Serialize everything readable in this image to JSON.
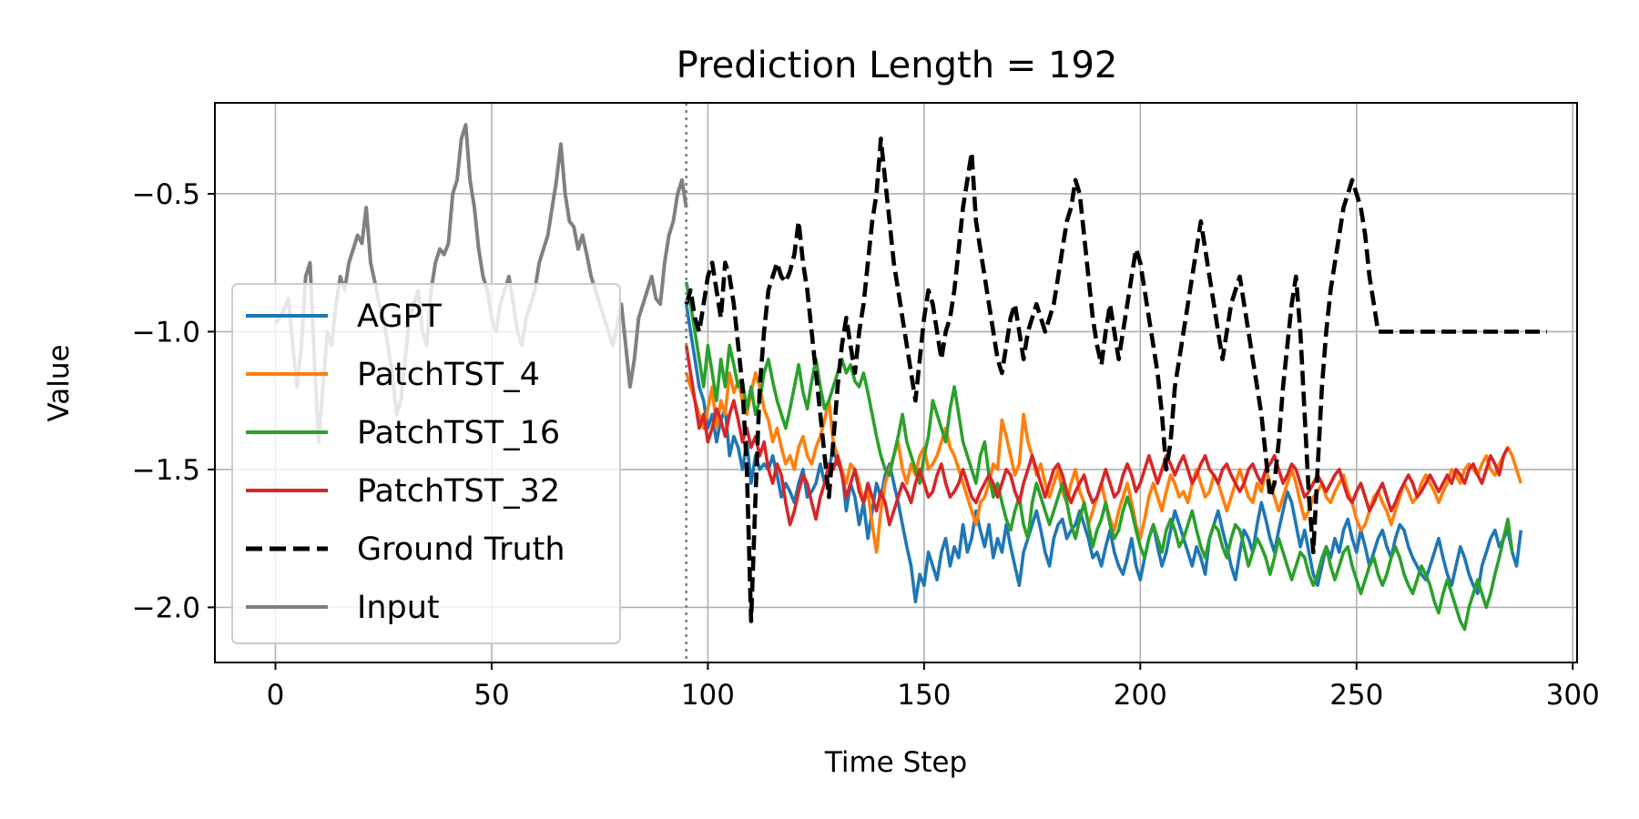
{
  "chart_data": {
    "type": "line",
    "title": "Prediction Length = 192",
    "xlabel": "Time Step",
    "ylabel": "Value",
    "xlim": [
      -14,
      301
    ],
    "ylim": [
      -2.2,
      -0.17
    ],
    "xticks": [
      0,
      50,
      100,
      150,
      200,
      250,
      300
    ],
    "yticks": [
      -2.0,
      -1.5,
      -1.0,
      -0.5
    ],
    "ytick_labels": [
      "−2.0",
      "−1.5",
      "−1.0",
      "−0.5"
    ],
    "grid": true,
    "legend_position": "center-left",
    "input_end_marker": 95,
    "input": {
      "x0": 0,
      "values": [
        -0.97,
        -0.95,
        -0.92,
        -0.88,
        -1.05,
        -1.2,
        -1.05,
        -0.8,
        -0.75,
        -1.1,
        -1.4,
        -1.2,
        -1.0,
        -1.05,
        -0.9,
        -0.8,
        -0.85,
        -0.75,
        -0.7,
        -0.65,
        -0.68,
        -0.55,
        -0.75,
        -0.82,
        -0.9,
        -0.95,
        -1.05,
        -1.15,
        -1.3,
        -1.25,
        -1.1,
        -0.95,
        -0.9,
        -0.85,
        -1.0,
        -1.05,
        -0.85,
        -0.75,
        -0.7,
        -0.72,
        -0.68,
        -0.5,
        -0.45,
        -0.3,
        -0.25,
        -0.45,
        -0.55,
        -0.7,
        -0.8,
        -0.85,
        -0.95,
        -1.0,
        -0.9,
        -0.85,
        -0.8,
        -0.9,
        -1.0,
        -1.05,
        -0.95,
        -0.9,
        -0.85,
        -0.75,
        -0.7,
        -0.65,
        -0.55,
        -0.45,
        -0.32,
        -0.5,
        -0.6,
        -0.62,
        -0.7,
        -0.65,
        -0.72,
        -0.8,
        -0.85,
        -0.9,
        -0.95,
        -1.0,
        -1.05,
        -0.98,
        -0.9,
        -1.05,
        -1.2,
        -1.1,
        -0.95,
        -0.9,
        -0.85,
        -0.8,
        -0.88,
        -0.9,
        -0.75,
        -0.65,
        -0.6,
        -0.5,
        -0.45,
        -0.55
      ],
      "name": "Input",
      "color": "#808080"
    },
    "series": [
      {
        "name": "AGPT",
        "color": "#1f77b4",
        "values": [
          -0.9,
          -1.0,
          -1.1,
          -1.2,
          -1.25,
          -1.35,
          -1.3,
          -1.4,
          -1.32,
          -1.28,
          -1.45,
          -1.38,
          -1.42,
          -1.5,
          -1.4,
          -1.55,
          -1.45,
          -1.5,
          -1.48,
          -1.5,
          -1.45,
          -1.52,
          -1.6,
          -1.55,
          -1.58,
          -1.62,
          -1.55,
          -1.5,
          -1.6,
          -1.58,
          -1.55,
          -1.48,
          -1.55,
          -1.5,
          -1.42,
          -1.48,
          -1.5,
          -1.65,
          -1.55,
          -1.6,
          -1.7,
          -1.62,
          -1.75,
          -1.65,
          -1.55,
          -1.6,
          -1.52,
          -1.48,
          -1.55,
          -1.62,
          -1.7,
          -1.78,
          -1.85,
          -1.98,
          -1.88,
          -1.92,
          -1.8,
          -1.85,
          -1.9,
          -1.8,
          -1.75,
          -1.85,
          -1.78,
          -1.82,
          -1.7,
          -1.8,
          -1.75,
          -1.65,
          -1.72,
          -1.78,
          -1.7,
          -1.82,
          -1.75,
          -1.8,
          -1.7,
          -1.78,
          -1.85,
          -1.92,
          -1.8,
          -1.75,
          -1.7,
          -1.65,
          -1.72,
          -1.8,
          -1.85,
          -1.75,
          -1.7,
          -1.68,
          -1.75,
          -1.72,
          -1.7,
          -1.65,
          -1.7,
          -1.75,
          -1.82,
          -1.8,
          -1.85,
          -1.78,
          -1.72,
          -1.8,
          -1.85,
          -1.88,
          -1.82,
          -1.75,
          -1.85,
          -1.9,
          -1.82,
          -1.75,
          -1.7,
          -1.78,
          -1.85,
          -1.8,
          -1.72,
          -1.65,
          -1.7,
          -1.75,
          -1.8,
          -1.85,
          -1.78,
          -1.82,
          -1.88,
          -1.75,
          -1.7,
          -1.65,
          -1.72,
          -1.78,
          -1.85,
          -1.9,
          -1.8,
          -1.72,
          -1.75,
          -1.8,
          -1.7,
          -1.62,
          -1.68,
          -1.75,
          -1.8,
          -1.72,
          -1.65,
          -1.58,
          -1.62,
          -1.7,
          -1.78,
          -1.72,
          -1.8,
          -1.88,
          -1.92,
          -1.85,
          -1.78,
          -1.82,
          -1.75,
          -1.8,
          -1.72,
          -1.68,
          -1.75,
          -1.8,
          -1.72,
          -1.78,
          -1.85,
          -1.8,
          -1.75,
          -1.72,
          -1.78,
          -1.82,
          -1.75,
          -1.7,
          -1.72,
          -1.78,
          -1.82,
          -1.85,
          -1.88,
          -1.9,
          -1.85,
          -1.8,
          -1.75,
          -1.82,
          -1.88,
          -1.92,
          -1.85,
          -1.78,
          -1.82,
          -1.88,
          -1.92,
          -1.95,
          -1.85,
          -1.8,
          -1.75,
          -1.72,
          -1.78,
          -1.75,
          -1.72,
          -1.8,
          -1.85,
          -1.72
        ]
      },
      {
        "name": "PatchTST_4",
        "color": "#ff7f0e",
        "values": [
          -1.15,
          -1.2,
          -1.25,
          -1.3,
          -1.35,
          -1.28,
          -1.2,
          -1.35,
          -1.25,
          -1.3,
          -1.15,
          -1.22,
          -1.18,
          -1.25,
          -1.3,
          -1.22,
          -1.15,
          -1.2,
          -1.28,
          -1.32,
          -1.4,
          -1.35,
          -1.42,
          -1.48,
          -1.45,
          -1.5,
          -1.42,
          -1.38,
          -1.45,
          -1.48,
          -1.42,
          -1.38,
          -1.32,
          -1.25,
          -1.4,
          -1.45,
          -1.5,
          -1.55,
          -1.48,
          -1.5,
          -1.55,
          -1.62,
          -1.58,
          -1.7,
          -1.8,
          -1.65,
          -1.55,
          -1.5,
          -1.45,
          -1.4,
          -1.5,
          -1.55,
          -1.48,
          -1.52,
          -1.45,
          -1.42,
          -1.5,
          -1.48,
          -1.45,
          -1.4,
          -1.35,
          -1.42,
          -1.45,
          -1.5,
          -1.55,
          -1.6,
          -1.65,
          -1.7,
          -1.62,
          -1.6,
          -1.55,
          -1.48,
          -1.5,
          -1.32,
          -1.38,
          -1.45,
          -1.52,
          -1.48,
          -1.3,
          -1.4,
          -1.45,
          -1.52,
          -1.48,
          -1.55,
          -1.6,
          -1.55,
          -1.5,
          -1.58,
          -1.62,
          -1.55,
          -1.5,
          -1.58,
          -1.62,
          -1.7,
          -1.65,
          -1.6,
          -1.55,
          -1.62,
          -1.68,
          -1.72,
          -1.65,
          -1.6,
          -1.55,
          -1.62,
          -1.7,
          -1.75,
          -1.68,
          -1.6,
          -1.55,
          -1.6,
          -1.65,
          -1.58,
          -1.52,
          -1.55,
          -1.6,
          -1.58,
          -1.62,
          -1.55,
          -1.5,
          -1.55,
          -1.6,
          -1.58,
          -1.52,
          -1.55,
          -1.6,
          -1.65,
          -1.6,
          -1.55,
          -1.5,
          -1.55,
          -1.6,
          -1.62,
          -1.55,
          -1.58,
          -1.5,
          -1.55,
          -1.6,
          -1.65,
          -1.6,
          -1.55,
          -1.5,
          -1.55,
          -1.62,
          -1.68,
          -1.65,
          -1.6,
          -1.58,
          -1.55,
          -1.6,
          -1.62,
          -1.58,
          -1.55,
          -1.52,
          -1.58,
          -1.62,
          -1.68,
          -1.72,
          -1.7,
          -1.65,
          -1.6,
          -1.58,
          -1.62,
          -1.65,
          -1.7,
          -1.65,
          -1.6,
          -1.55,
          -1.58,
          -1.62,
          -1.6,
          -1.55,
          -1.52,
          -1.55,
          -1.58,
          -1.62,
          -1.58,
          -1.55,
          -1.5,
          -1.52,
          -1.55,
          -1.5,
          -1.48,
          -1.5,
          -1.52,
          -1.48,
          -1.45,
          -1.5,
          -1.52,
          -1.48,
          -1.45,
          -1.42,
          -1.45,
          -1.5,
          -1.55
        ]
      },
      {
        "name": "PatchTST_16",
        "color": "#2ca02c",
        "values": [
          -0.82,
          -0.9,
          -1.0,
          -1.1,
          -1.2,
          -1.05,
          -1.15,
          -1.25,
          -1.1,
          -1.2,
          -1.05,
          -1.12,
          -1.2,
          -1.18,
          -1.28,
          -1.2,
          -1.3,
          -1.25,
          -1.15,
          -1.1,
          -1.18,
          -1.25,
          -1.3,
          -1.35,
          -1.28,
          -1.2,
          -1.12,
          -1.22,
          -1.28,
          -1.18,
          -1.1,
          -1.2,
          -1.28,
          -1.25,
          -1.2,
          -1.15,
          -1.1,
          -1.15,
          -1.12,
          -1.18,
          -1.2,
          -1.15,
          -1.22,
          -1.3,
          -1.38,
          -1.45,
          -1.5,
          -1.52,
          -1.45,
          -1.38,
          -1.3,
          -1.4,
          -1.45,
          -1.5,
          -1.55,
          -1.45,
          -1.38,
          -1.25,
          -1.3,
          -1.35,
          -1.4,
          -1.28,
          -1.2,
          -1.3,
          -1.4,
          -1.45,
          -1.5,
          -1.55,
          -1.45,
          -1.4,
          -1.52,
          -1.6,
          -1.55,
          -1.62,
          -1.68,
          -1.72,
          -1.65,
          -1.6,
          -1.7,
          -1.75,
          -1.62,
          -1.55,
          -1.6,
          -1.65,
          -1.7,
          -1.65,
          -1.6,
          -1.55,
          -1.62,
          -1.7,
          -1.75,
          -1.68,
          -1.62,
          -1.7,
          -1.78,
          -1.72,
          -1.68,
          -1.62,
          -1.7,
          -1.75,
          -1.72,
          -1.65,
          -1.6,
          -1.65,
          -1.72,
          -1.78,
          -1.82,
          -1.75,
          -1.7,
          -1.75,
          -1.8,
          -1.72,
          -1.68,
          -1.72,
          -1.78,
          -1.75,
          -1.7,
          -1.65,
          -1.72,
          -1.78,
          -1.82,
          -1.75,
          -1.7,
          -1.72,
          -1.78,
          -1.82,
          -1.75,
          -1.7,
          -1.72,
          -1.78,
          -1.85,
          -1.8,
          -1.75,
          -1.78,
          -1.82,
          -1.88,
          -1.82,
          -1.75,
          -1.8,
          -1.85,
          -1.9,
          -1.85,
          -1.8,
          -1.82,
          -1.88,
          -1.92,
          -1.88,
          -1.82,
          -1.78,
          -1.85,
          -1.9,
          -1.85,
          -1.8,
          -1.78,
          -1.85,
          -1.9,
          -1.95,
          -1.9,
          -1.85,
          -1.82,
          -1.88,
          -1.92,
          -1.88,
          -1.82,
          -1.78,
          -1.82,
          -1.88,
          -1.92,
          -1.95,
          -1.9,
          -1.85,
          -1.88,
          -1.92,
          -1.98,
          -2.02,
          -1.95,
          -1.9,
          -1.95,
          -2.0,
          -2.05,
          -2.08,
          -2.0,
          -1.95,
          -1.9,
          -1.95,
          -2.0,
          -1.95,
          -1.88,
          -1.82,
          -1.75,
          -1.68,
          -1.8
        ]
      },
      {
        "name": "PatchTST_32",
        "color": "#d62728",
        "values": [
          -1.05,
          -1.15,
          -1.25,
          -1.35,
          -1.3,
          -1.4,
          -1.35,
          -1.28,
          -1.32,
          -1.38,
          -1.3,
          -1.25,
          -1.32,
          -1.4,
          -1.35,
          -1.42,
          -1.38,
          -1.45,
          -1.4,
          -1.5,
          -1.55,
          -1.48,
          -1.52,
          -1.62,
          -1.7,
          -1.65,
          -1.58,
          -1.52,
          -1.55,
          -1.62,
          -1.68,
          -1.6,
          -1.55,
          -1.48,
          -1.5,
          -1.45,
          -1.52,
          -1.6,
          -1.55,
          -1.5,
          -1.58,
          -1.62,
          -1.55,
          -1.6,
          -1.65,
          -1.58,
          -1.62,
          -1.7,
          -1.65,
          -1.6,
          -1.55,
          -1.58,
          -1.62,
          -1.55,
          -1.5,
          -1.55,
          -1.6,
          -1.58,
          -1.52,
          -1.48,
          -1.55,
          -1.6,
          -1.58,
          -1.55,
          -1.5,
          -1.55,
          -1.6,
          -1.62,
          -1.58,
          -1.55,
          -1.52,
          -1.55,
          -1.6,
          -1.55,
          -1.5,
          -1.52,
          -1.58,
          -1.62,
          -1.55,
          -1.5,
          -1.45,
          -1.5,
          -1.55,
          -1.6,
          -1.55,
          -1.5,
          -1.48,
          -1.52,
          -1.58,
          -1.62,
          -1.58,
          -1.55,
          -1.52,
          -1.58,
          -1.62,
          -1.6,
          -1.55,
          -1.5,
          -1.55,
          -1.6,
          -1.58,
          -1.52,
          -1.48,
          -1.52,
          -1.58,
          -1.55,
          -1.5,
          -1.45,
          -1.5,
          -1.55,
          -1.5,
          -1.45,
          -1.48,
          -1.52,
          -1.48,
          -1.45,
          -1.5,
          -1.55,
          -1.52,
          -1.48,
          -1.45,
          -1.5,
          -1.52,
          -1.55,
          -1.5,
          -1.48,
          -1.52,
          -1.55,
          -1.58,
          -1.55,
          -1.5,
          -1.48,
          -1.52,
          -1.55,
          -1.5,
          -1.48,
          -1.45,
          -1.5,
          -1.55,
          -1.52,
          -1.48,
          -1.5,
          -1.55,
          -1.6,
          -1.58,
          -1.55,
          -1.52,
          -1.55,
          -1.58,
          -1.55,
          -1.52,
          -1.5,
          -1.55,
          -1.6,
          -1.62,
          -1.58,
          -1.55,
          -1.6,
          -1.65,
          -1.62,
          -1.58,
          -1.55,
          -1.6,
          -1.65,
          -1.62,
          -1.58,
          -1.55,
          -1.52,
          -1.55,
          -1.6,
          -1.58,
          -1.55,
          -1.52,
          -1.55,
          -1.58,
          -1.55,
          -1.52,
          -1.55,
          -1.5,
          -1.52,
          -1.55,
          -1.5,
          -1.48,
          -1.52,
          -1.55,
          -1.5,
          -1.45,
          -1.48,
          -1.52,
          -1.45,
          -1.42
        ]
      }
    ],
    "ground_truth": {
      "name": "Ground Truth",
      "color": "#000000",
      "values": [
        -0.9,
        -0.85,
        -0.95,
        -1.0,
        -0.9,
        -0.8,
        -0.75,
        -0.85,
        -0.95,
        -0.75,
        -0.8,
        -0.9,
        -1.05,
        -1.2,
        -1.5,
        -2.05,
        -1.6,
        -1.2,
        -1.0,
        -0.85,
        -0.8,
        -0.75,
        -0.8,
        -0.82,
        -0.78,
        -0.72,
        -0.6,
        -0.75,
        -0.85,
        -1.0,
        -1.15,
        -1.3,
        -1.45,
        -1.6,
        -1.4,
        -1.2,
        -1.05,
        -0.95,
        -1.05,
        -1.15,
        -1.0,
        -0.9,
        -0.75,
        -0.6,
        -0.5,
        -0.3,
        -0.45,
        -0.6,
        -0.75,
        -0.85,
        -0.95,
        -1.05,
        -1.15,
        -1.25,
        -1.1,
        -0.95,
        -0.85,
        -0.9,
        -1.0,
        -1.1,
        -1.0,
        -0.95,
        -0.85,
        -0.7,
        -0.55,
        -0.45,
        -0.35,
        -0.6,
        -0.7,
        -0.8,
        -0.9,
        -1.0,
        -1.1,
        -1.15,
        -1.05,
        -0.95,
        -0.9,
        -1.0,
        -1.1,
        -1.0,
        -0.95,
        -0.9,
        -0.95,
        -1.0,
        -0.95,
        -0.9,
        -0.8,
        -0.7,
        -0.6,
        -0.55,
        -0.45,
        -0.5,
        -0.65,
        -0.8,
        -0.95,
        -1.05,
        -1.12,
        -1.0,
        -0.9,
        -1.0,
        -1.1,
        -1.0,
        -0.9,
        -0.8,
        -0.7,
        -0.75,
        -0.85,
        -0.95,
        -1.05,
        -1.15,
        -1.3,
        -1.5,
        -1.4,
        -1.2,
        -1.1,
        -1.0,
        -0.9,
        -0.8,
        -0.7,
        -0.6,
        -0.7,
        -0.8,
        -0.9,
        -1.0,
        -1.1,
        -1.0,
        -0.9,
        -0.85,
        -0.8,
        -0.9,
        -1.0,
        -1.1,
        -1.2,
        -1.3,
        -1.45,
        -1.6,
        -1.55,
        -1.4,
        -1.2,
        -1.05,
        -0.9,
        -0.8,
        -1.0,
        -1.3,
        -1.6,
        -1.8,
        -1.5,
        -1.2,
        -1.0,
        -0.85,
        -0.75,
        -0.65,
        -0.55,
        -0.5,
        -0.45,
        -0.5,
        -0.55,
        -0.65,
        -0.8,
        -0.9,
        -1.0,
        -1.0,
        -1.0,
        -1.0,
        -1.0,
        -1.0,
        -1.0,
        -1.0,
        -1.0,
        -1.0,
        -1.0,
        -1.0,
        -1.0,
        -1.0,
        -1.0,
        -1.0,
        -1.0,
        -1.0,
        -1.0,
        -1.0,
        -1.0,
        -1.0,
        -1.0,
        -1.0,
        -1.0,
        -1.0,
        -1.0,
        -1.0,
        -1.0,
        -1.0,
        -1.0,
        -1.0,
        -1.0,
        -1.0,
        -1.0,
        -1.0,
        -1.0,
        -1.0,
        -1.0,
        -1.0
      ]
    },
    "legend_order": [
      "AGPT",
      "PatchTST_4",
      "PatchTST_16",
      "PatchTST_32",
      "Ground Truth",
      "Input"
    ]
  }
}
